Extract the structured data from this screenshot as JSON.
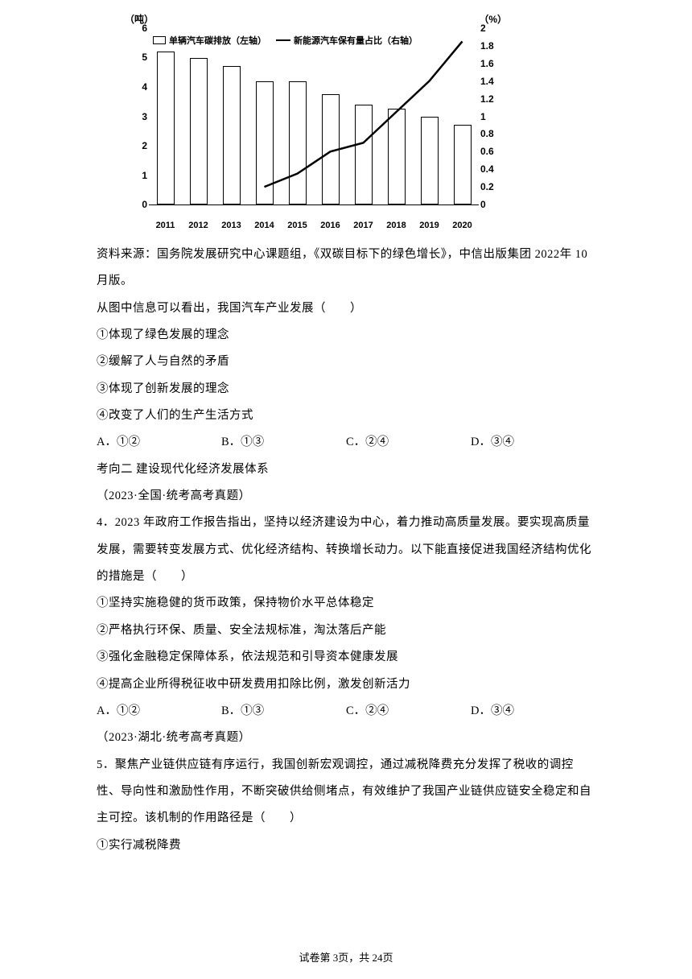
{
  "chart": {
    "type": "bar+line",
    "left_axis_label": "（吨）",
    "right_axis_label": "（%）",
    "left_ylim": [
      0,
      6
    ],
    "right_ylim": [
      0,
      2
    ],
    "left_ticks": [
      0,
      1,
      2,
      3,
      4,
      5,
      6
    ],
    "right_ticks": [
      0,
      0.2,
      0.4,
      0.6,
      0.8,
      1,
      1.2,
      1.4,
      1.6,
      1.8,
      2
    ],
    "categories": [
      "2011",
      "2012",
      "2013",
      "2014",
      "2015",
      "2016",
      "2017",
      "2018",
      "2019",
      "2020"
    ],
    "bar_values": [
      5.2,
      5.0,
      4.7,
      4.2,
      4.2,
      3.75,
      3.4,
      3.25,
      3.0,
      2.7
    ],
    "bar_label": "单辆汽车碳排放（左轴）",
    "line_label": "新能源汽车保有量占比（右轴）",
    "line_values": [
      null,
      null,
      null,
      0.2,
      0.35,
      0.6,
      0.7,
      1.05,
      1.4,
      1.85
    ],
    "bar_border": "#000000",
    "bar_fill": "#ffffff",
    "line_color": "#000000",
    "line_width": 2.5,
    "background_color": "#ffffff"
  },
  "source": "资料来源：国务院发展研究中心课题组，《双碳目标下的绿色增长》，中信出版集团 2022年 10 月版。",
  "q3": {
    "stem": "从图中信息可以看出，我国汽车产业发展（　　）",
    "s1": "①体现了绿色发展的理念",
    "s2": "②缓解了人与自然的矛盾",
    "s3": "③体现了创新发展的理念",
    "s4": "④改变了人们的生产生活方式",
    "a": "A．①②",
    "b": "B．①③",
    "c": "C．②④",
    "d": "D．③④"
  },
  "heading2": "考向二  建设现代化经济发展体系",
  "exam1": "（2023·全国·统考高考真题）",
  "q4": {
    "num": "4．",
    "stem": "2023 年政府工作报告指出，坚持以经济建设为中心，着力推动高质量发展。要实现高质量发展，需要转变发展方式、优化经济结构、转换增长动力。以下能直接促进我国经济结构优化的措施是（　　）",
    "s1": "①坚持实施稳健的货币政策，保持物价水平总体稳定",
    "s2": "②严格执行环保、质量、安全法规标准，淘汰落后产能",
    "s3": "③强化金融稳定保障体系，依法规范和引导资本健康发展",
    "s4": "④提高企业所得税征收中研发费用扣除比例，激发创新活力",
    "a": "A．①②",
    "b": "B．①③",
    "c": "C．②④",
    "d": "D．③④"
  },
  "exam2": "（2023·湖北·统考高考真题）",
  "q5": {
    "num": "5．",
    "stem": "聚焦产业链供应链有序运行，我国创新宏观调控，通过减税降费充分发挥了税收的调控性、导向性和激励性作用，不断突破供给侧堵点，有效维护了我国产业链供应链安全稳定和自主可控。该机制的作用路径是（　　）",
    "s1": "①实行减税降费"
  },
  "footer": "试卷第 3页，共 24页"
}
